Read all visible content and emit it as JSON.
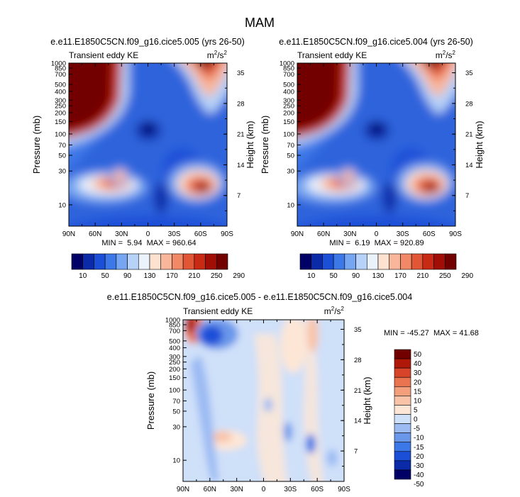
{
  "figure": {
    "title": "MAM"
  },
  "colors": {
    "top_scale": [
      "#000066",
      "#0a2aa8",
      "#1c4fd8",
      "#3c78e8",
      "#76a6f1",
      "#b6d2f8",
      "#eaf2fc",
      "#fde2d0",
      "#f9b69a",
      "#f18866",
      "#e25635",
      "#c82a14",
      "#a10e05",
      "#730000"
    ],
    "diff_scale": [
      "#000066",
      "#0a2aa8",
      "#1c4fd8",
      "#3c78e8",
      "#6b97ea",
      "#9cbbf3",
      "#cfe0f9",
      "#fde6d6",
      "#f9c3a8",
      "#f39f7c",
      "#ea7450",
      "#d8442a",
      "#b0190a",
      "#730000"
    ]
  },
  "chart_data": [
    {
      "type": "heatmap",
      "id": "panel-a",
      "title": "e.e11.E1850C5CN.f09_g16.cice5.005 (yrs 26-50)",
      "left_label": "Transient eddy KE",
      "units": "m²/s²",
      "xlabel": "",
      "ylabel": "Pressure (mb)",
      "y2label": "Height (km)",
      "x_ticks": [
        "90N",
        "60N",
        "30N",
        "0",
        "30S",
        "60S",
        "90S"
      ],
      "y_ticks": [
        "10",
        "30",
        "50",
        "70",
        "100",
        "150",
        "200",
        "250",
        "300",
        "400",
        "500",
        "700",
        "850",
        "1000"
      ],
      "y2_ticks": [
        "35",
        "28",
        "21",
        "14",
        "7"
      ],
      "ylim": [
        1000,
        5
      ],
      "min": "5.94",
      "max": "960.64",
      "stats": "MIN =  5.94  MAX = 960.64",
      "levels": [
        "10",
        "50",
        "90",
        "130",
        "170",
        "210",
        "250",
        "290"
      ]
    },
    {
      "type": "heatmap",
      "id": "panel-b",
      "title": "e.e11.E1850C5CN.f09_g16.cice5.004 (yrs 26-50)",
      "left_label": "Transient eddy KE",
      "units": "m²/s²",
      "xlabel": "",
      "ylabel": "Pressure (mb)",
      "y2label": "Height (km)",
      "x_ticks": [
        "90N",
        "60N",
        "30N",
        "0",
        "30S",
        "60S",
        "90S"
      ],
      "y_ticks": [
        "10",
        "30",
        "50",
        "70",
        "100",
        "150",
        "200",
        "250",
        "300",
        "400",
        "500",
        "700",
        "850",
        "1000"
      ],
      "y2_ticks": [
        "35",
        "28",
        "21",
        "14",
        "7"
      ],
      "ylim": [
        1000,
        5
      ],
      "min": "6.19",
      "max": "920.89",
      "stats": "MIN =  6.19  MAX = 920.89",
      "levels": [
        "10",
        "50",
        "90",
        "130",
        "170",
        "210",
        "250",
        "290"
      ]
    },
    {
      "type": "heatmap",
      "id": "panel-diff",
      "title": "e.e11.E1850C5CN.f09_g16.cice5.005 - e.e11.E1850C5CN.f09_g16.cice5.004",
      "left_label": "Transient eddy KE",
      "units": "m²/s²",
      "xlabel": "",
      "ylabel": "Pressure (mb)",
      "y2label": "Height (km)",
      "x_ticks": [
        "90N",
        "60N",
        "30N",
        "0",
        "30S",
        "60S",
        "90S"
      ],
      "y_ticks": [
        "10",
        "30",
        "50",
        "70",
        "100",
        "150",
        "200",
        "250",
        "300",
        "400",
        "500",
        "700",
        "850",
        "1000"
      ],
      "y2_ticks": [
        "35",
        "28",
        "21",
        "14",
        "7"
      ],
      "ylim": [
        1000,
        5
      ],
      "min": "-45.27",
      "max": "41.68",
      "stats": "MIN = -45.27  MAX = 41.68",
      "levels": [
        "50",
        "40",
        "30",
        "20",
        "15",
        "10",
        "5",
        "0",
        "-5",
        "-10",
        "-15",
        "-20",
        "-30",
        "-40",
        "-50"
      ]
    }
  ]
}
